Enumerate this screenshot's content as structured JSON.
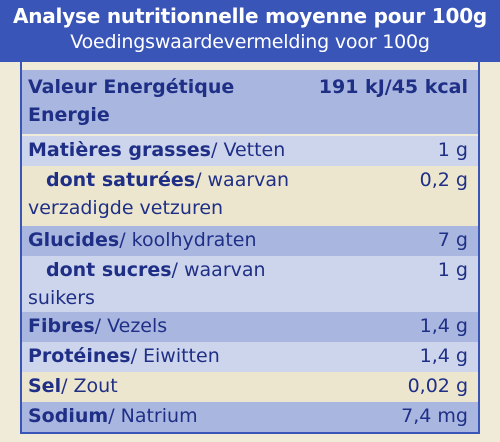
{
  "header": {
    "title_fr": "Analyse nutritionnelle moyenne pour 100g",
    "title_nl": "Voedingswaardevermelding voor 100g"
  },
  "rows": [
    {
      "label_bold": "Valeur Energétique",
      "label_rest": "",
      "label_line2_bold": "Energie",
      "label_line2": "",
      "value": "191 kJ/45 kcal",
      "value_bold": true
    },
    {
      "label_bold": "Matières grasses",
      "label_rest": "/ Vetten",
      "value": "1 g"
    },
    {
      "label_bold": "dont saturées",
      "label_rest": "/ waarvan",
      "label_line2": "verzadigde vetzuren",
      "value": "0,2 g"
    },
    {
      "label_bold": "Glucides",
      "label_rest": "/ koolhydraten",
      "value": "7 g"
    },
    {
      "label_bold": "dont sucres",
      "label_rest": "/ waarvan",
      "label_line2": "suikers",
      "value": "1 g"
    },
    {
      "label_bold": "Fibres",
      "label_rest": "/ Vezels",
      "value": "1,4 g"
    },
    {
      "label_bold": "Protéines",
      "label_rest": "/ Eiwitten",
      "value": "1,4 g"
    },
    {
      "label_bold": "Sel",
      "label_rest": "/ Zout",
      "value": "0,02 g"
    },
    {
      "label_bold": "Sodium",
      "label_rest": "/ Natrium",
      "value": "7,4 mg"
    }
  ]
}
